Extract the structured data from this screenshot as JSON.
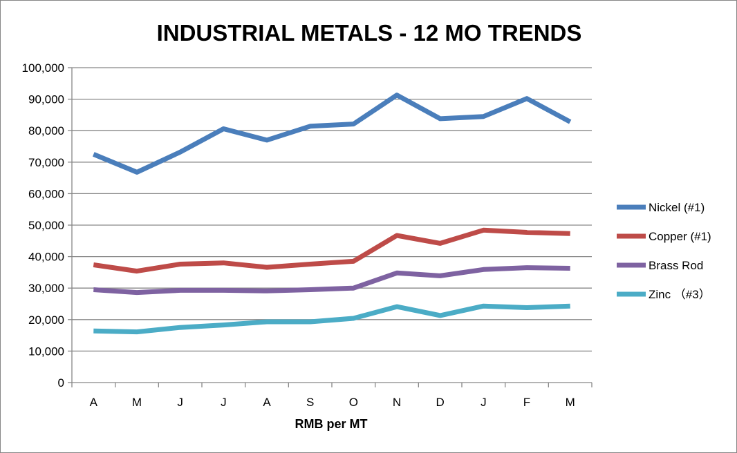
{
  "chart_data": {
    "type": "line",
    "title": "INDUSTRIAL METALS - 12 MO TRENDS",
    "xlabel": "RMB per MT",
    "ylabel": "",
    "categories": [
      "A",
      "M",
      "J",
      "J",
      "A",
      "S",
      "O",
      "N",
      "D",
      "J",
      "F",
      "M"
    ],
    "ylim": [
      0,
      100000
    ],
    "y_ticks": [
      0,
      10000,
      20000,
      30000,
      40000,
      50000,
      60000,
      70000,
      80000,
      90000,
      100000
    ],
    "y_tick_labels": [
      "0",
      "10,000",
      "20,000",
      "30,000",
      "40,000",
      "50,000",
      "60,000",
      "70,000",
      "80,000",
      "90,000",
      "100,000"
    ],
    "grid": true,
    "legend_position": "right",
    "series": [
      {
        "name": "Nickel (#1)",
        "color": "#4A7EBB",
        "values": [
          72500,
          66800,
          73200,
          80600,
          77000,
          81400,
          82100,
          91300,
          83800,
          84500,
          90200,
          82800
        ]
      },
      {
        "name": "Copper (#1)",
        "color": "#BE4B48",
        "values": [
          37400,
          35400,
          37600,
          38000,
          36600,
          37600,
          38500,
          46700,
          44200,
          48400,
          47700,
          47300
        ]
      },
      {
        "name": "Brass Rod",
        "color": "#7E62A1",
        "values": [
          29500,
          28600,
          29300,
          29300,
          29100,
          29500,
          30000,
          34800,
          33900,
          35900,
          36500,
          36300
        ]
      },
      {
        "name": "Zinc （#3）",
        "color": "#4BACC6",
        "values": [
          16400,
          16100,
          17500,
          18300,
          19300,
          19300,
          20400,
          24100,
          21300,
          24300,
          23800,
          24300
        ]
      }
    ]
  }
}
